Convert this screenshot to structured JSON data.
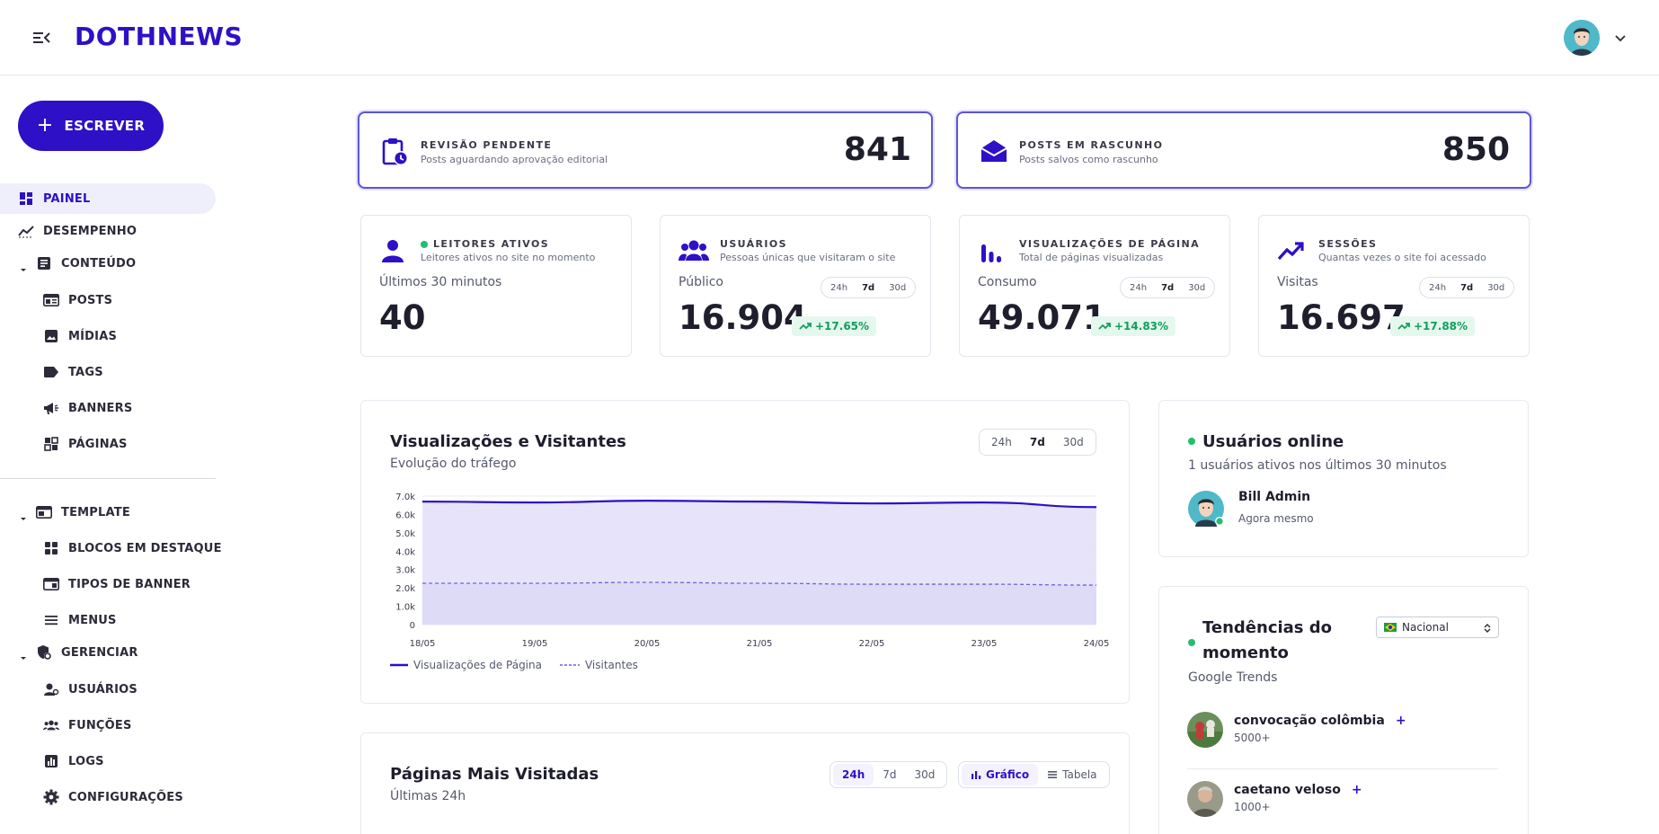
{
  "header": {
    "logo_text": "DOTHNEWS",
    "menu_icon": "menu-collapse-icon",
    "avatar_icon": "user-avatar",
    "caret_icon": "chevron-down-icon"
  },
  "sidebar": {
    "write_label": "ESCREVER",
    "items": [
      {
        "label": "PAINEL",
        "icon": "dashboard-icon",
        "active": true
      },
      {
        "label": "DESEMPENHO",
        "icon": "trend-icon"
      },
      {
        "label": "CONTEÚDO",
        "icon": "article-icon",
        "expandable": true
      },
      {
        "label": "POSTS",
        "icon": "posts-icon"
      },
      {
        "label": "MÍDIAS",
        "icon": "image-icon"
      },
      {
        "label": "TAGS",
        "icon": "tag-icon"
      },
      {
        "label": "BANNERS",
        "icon": "megaphone-icon"
      },
      {
        "label": "PÁGINAS",
        "icon": "pages-icon"
      },
      {
        "label": "TEMPLATE",
        "icon": "template-icon",
        "expandable": true
      },
      {
        "label": "BLOCOS EM DESTAQUE",
        "icon": "blocks-icon"
      },
      {
        "label": "TIPOS DE BANNER",
        "icon": "banner-type-icon"
      },
      {
        "label": "MENUS",
        "icon": "menu-lines-icon"
      },
      {
        "label": "GERENCIAR",
        "icon": "manage-icon",
        "expandable": true
      },
      {
        "label": "USUÁRIOS",
        "icon": "user-gear-icon"
      },
      {
        "label": "FUNÇÕES",
        "icon": "group-icon"
      },
      {
        "label": "LOGS",
        "icon": "logs-icon"
      },
      {
        "label": "CONFIGURAÇÕES",
        "icon": "settings-icon"
      }
    ]
  },
  "hero_cards": [
    {
      "title": "REVISÃO PENDENTE",
      "subtitle": "Posts aguardando aprovação editorial",
      "value": "841",
      "icon": "clipboard-clock-icon"
    },
    {
      "title": "POSTS EM RASCUNHO",
      "subtitle": "Posts salvos como rascunho",
      "value": "850",
      "icon": "open-envelope-icon"
    }
  ],
  "metric_cards": [
    {
      "title": "LEITORES ATIVOS",
      "subtitle": "Leitores ativos no site no momento",
      "label": "Últimos 30 minutos",
      "value": "40",
      "icon": "person-icon",
      "live": true
    },
    {
      "title": "USUÁRIOS",
      "subtitle": "Pessoas únicas que visitaram o site",
      "label": "Público",
      "value": "16.904",
      "change": "+17.65%",
      "icon": "people-icon",
      "ranges": [
        "24h",
        "7d",
        "30d"
      ],
      "selected": "7d"
    },
    {
      "title": "VISUALIZAÇÕES DE PÁGINA",
      "subtitle": "Total de páginas visualizadas",
      "label": "Consumo",
      "value": "49.071",
      "change": "+14.83%",
      "icon": "bar-chart-icon",
      "ranges": [
        "24h",
        "7d",
        "30d"
      ],
      "selected": "7d"
    },
    {
      "title": "SESSÕES",
      "subtitle": "Quantas vezes o site foi acessado",
      "label": "Visitas",
      "value": "16.697",
      "change": "+17.88%",
      "icon": "trending-up-icon",
      "ranges": [
        "24h",
        "7d",
        "30d"
      ],
      "selected": "7d"
    }
  ],
  "traffic_panel": {
    "title": "Visualizações e Visitantes",
    "subtitle": "Evolução do tráfego",
    "ranges": [
      "24h",
      "7d",
      "30d"
    ],
    "selected": "7d"
  },
  "chart_data": {
    "type": "area",
    "x": [
      "18/05",
      "19/05",
      "20/05",
      "21/05",
      "22/05",
      "23/05",
      "24/05"
    ],
    "series": [
      {
        "name": "Visualizações de Página",
        "values": [
          6700,
          6650,
          6750,
          6700,
          6600,
          6650,
          6400
        ],
        "color": "#2e10c6",
        "style": "solid"
      },
      {
        "name": "Visitantes",
        "values": [
          2250,
          2250,
          2300,
          2250,
          2200,
          2200,
          2150
        ],
        "color": "#6c63d9",
        "style": "dashed"
      }
    ],
    "yticks": [
      "0",
      "1.0k",
      "2.0k",
      "3.0k",
      "4.0k",
      "5.0k",
      "6.0k",
      "7.0k"
    ],
    "ylim": [
      0,
      7000
    ],
    "legend_position": "bottom-left",
    "grid": true
  },
  "online_panel": {
    "title": "Usuários online",
    "subtitle": "1 usuários ativos nos últimos 30 minutos",
    "user_name": "Bill Admin",
    "user_time": "Agora mesmo"
  },
  "trends_panel": {
    "title_line1": "Tendências do",
    "title_line2": "momento",
    "subtitle": "Google Trends",
    "region": "Nacional",
    "flag_icon": "brazil-flag-icon",
    "items": [
      {
        "name": "convocação colômbia",
        "count": "5000+"
      },
      {
        "name": "caetano veloso",
        "count": "1000+"
      }
    ]
  },
  "top_pages_panel": {
    "title": "Páginas Mais Visitadas",
    "subtitle": "Últimas 24h",
    "ranges": [
      "24h",
      "7d",
      "30d"
    ],
    "selected": "24h",
    "views": [
      "Gráfico",
      "Tabela"
    ],
    "selected_view": "Gráfico"
  }
}
